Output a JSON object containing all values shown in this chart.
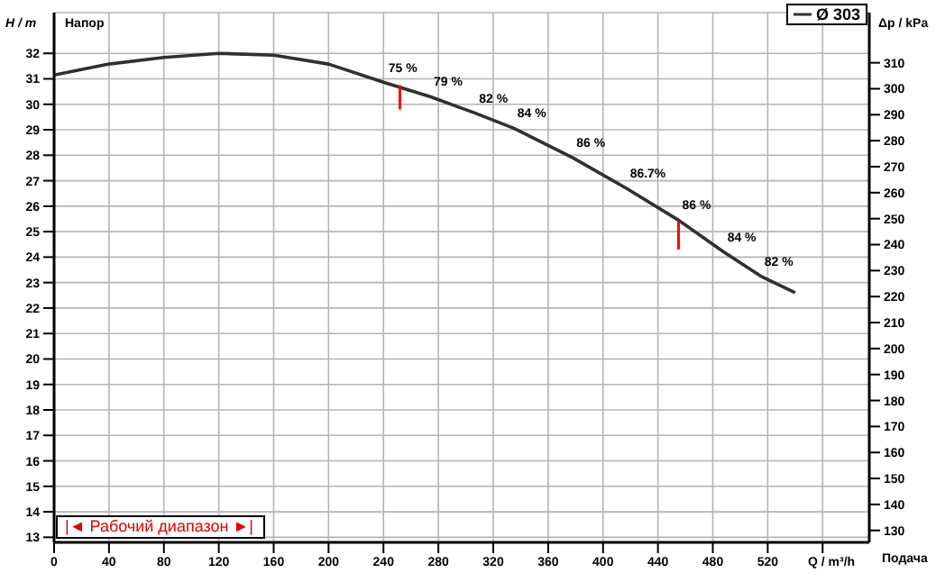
{
  "chart_data": {
    "type": "line",
    "xlabel": "Q / m³/h",
    "ylabel": "H / m",
    "y2label": "Δp / kPa",
    "xlim": [
      0,
      594
    ],
    "xticks": [
      0,
      40,
      80,
      120,
      160,
      200,
      240,
      280,
      320,
      360,
      400,
      440,
      480,
      520,
      {
        "value": 560,
        "label": null
      }
    ],
    "ylim": [
      12.8,
      33.6
    ],
    "yticks": [
      13,
      14,
      15,
      16,
      17,
      18,
      19,
      20,
      21,
      22,
      23,
      24,
      25,
      26,
      27,
      28,
      29,
      30,
      31,
      32
    ],
    "y2lim": [
      125.4,
      329.3
    ],
    "y2ticks": [
      130,
      140,
      150,
      160,
      170,
      180,
      190,
      200,
      210,
      220,
      230,
      240,
      250,
      260,
      270,
      280,
      290,
      300,
      310
    ],
    "grid": true,
    "legend": "top right",
    "marker": "none",
    "line_style": "solid",
    "series": [
      {
        "name": "Ø 303",
        "color": "#303030",
        "x": [
          0,
          40,
          80,
          120,
          160,
          200,
          241,
          274,
          307,
          335,
          378,
          417,
          455,
          488,
          515,
          540
        ],
        "values": [
          31.15,
          31.58,
          31.84,
          32.0,
          31.93,
          31.58,
          30.85,
          30.3,
          29.65,
          29.06,
          27.9,
          26.7,
          25.45,
          24.2,
          23.25,
          22.6
        ]
      },
      {
        "color": "#ff0000",
        "x": [
          252,
          252
        ],
        "values": [
          30.75,
          29.8
        ]
      },
      {
        "color": "#ff0000",
        "x": [
          455,
          455
        ],
        "values": [
          25.4,
          24.3
        ]
      }
    ],
    "annotations": [
      "Напор",
      "Подача",
      "|◄ Рабочий диапазон ►|",
      {
        "text": "75 %",
        "x": 241,
        "y": 30.85
      },
      {
        "text": "79 %",
        "x": 274,
        "y": 30.3
      },
      {
        "text": "82 %",
        "x": 307,
        "y": 29.65
      },
      {
        "text": "84 %",
        "x": 335,
        "y": 29.06
      },
      {
        "text": "86 %",
        "x": 378,
        "y": 27.9
      },
      {
        "text": "86.7%",
        "x": 417,
        "y": 26.7
      },
      {
        "text": "86 %",
        "x": 455,
        "y": 25.45
      },
      {
        "text": "84 %",
        "x": 488,
        "y": 24.2
      },
      {
        "text": "82 %",
        "x": 515,
        "y": 23.25
      }
    ]
  }
}
